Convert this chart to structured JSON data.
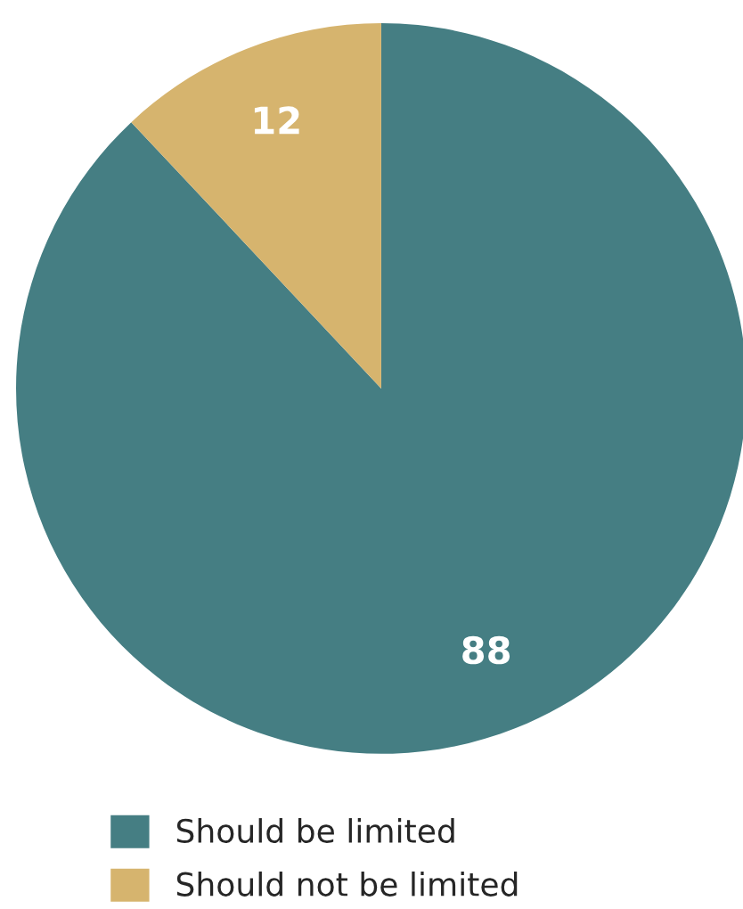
{
  "chart_data": {
    "type": "pie",
    "categories": [
      "Should be limited",
      "Should not be limited"
    ],
    "values": [
      88,
      12
    ],
    "colors": [
      "#457e83",
      "#d6b46e"
    ],
    "data_labels": true,
    "legend": "bottom"
  }
}
